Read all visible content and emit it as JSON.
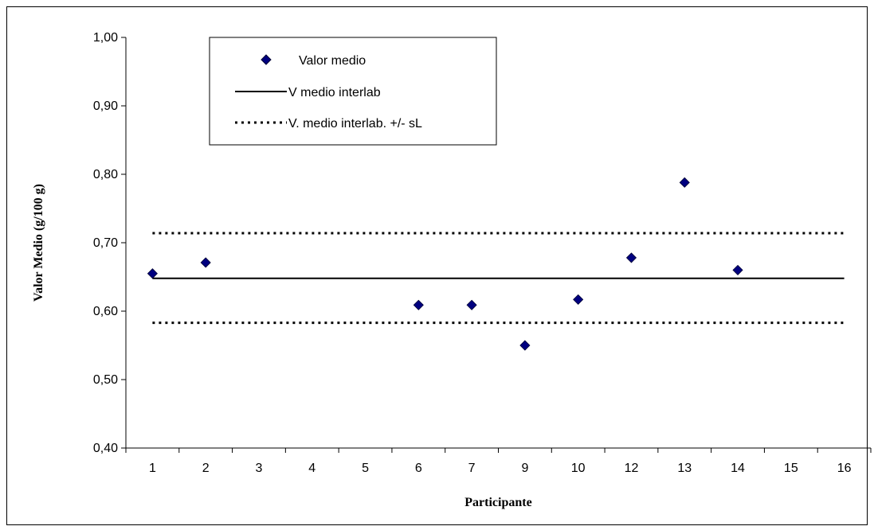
{
  "chart_data": {
    "type": "scatter",
    "title": "",
    "xlabel": "Participante",
    "ylabel": "Valor Medio (g/100 g)",
    "categories": [
      "1",
      "2",
      "3",
      "4",
      "5",
      "6",
      "7",
      "9",
      "10",
      "12",
      "13",
      "14",
      "15",
      "16"
    ],
    "ylim": [
      0.4,
      1.0
    ],
    "yticks": [
      "0,40",
      "0,50",
      "0,60",
      "0,70",
      "0,80",
      "0,90",
      "1,00"
    ],
    "series": [
      {
        "name": "Valor medio",
        "marker": "diamond",
        "color": "#000080",
        "points": [
          {
            "x": "1",
            "y": 0.655
          },
          {
            "x": "2",
            "y": 0.671
          },
          {
            "x": "6",
            "y": 0.609
          },
          {
            "x": "7",
            "y": 0.609
          },
          {
            "x": "9",
            "y": 0.55
          },
          {
            "x": "10",
            "y": 0.617
          },
          {
            "x": "12",
            "y": 0.678
          },
          {
            "x": "13",
            "y": 0.788
          },
          {
            "x": "14",
            "y": 0.66
          }
        ]
      }
    ],
    "reference_lines": [
      {
        "name": "V medio interlab",
        "value": 0.648,
        "style": "solid"
      },
      {
        "name": "V. medio interlab. +/- sL",
        "value": 0.714,
        "style": "dotted"
      },
      {
        "name": "V. medio interlab. +/- sL",
        "value": 0.583,
        "style": "dotted"
      }
    ],
    "legend": {
      "placement": "top-left",
      "entries": [
        "Valor medio",
        "V medio interlab",
        "V. medio interlab. +/- sL"
      ]
    },
    "grid": false
  }
}
